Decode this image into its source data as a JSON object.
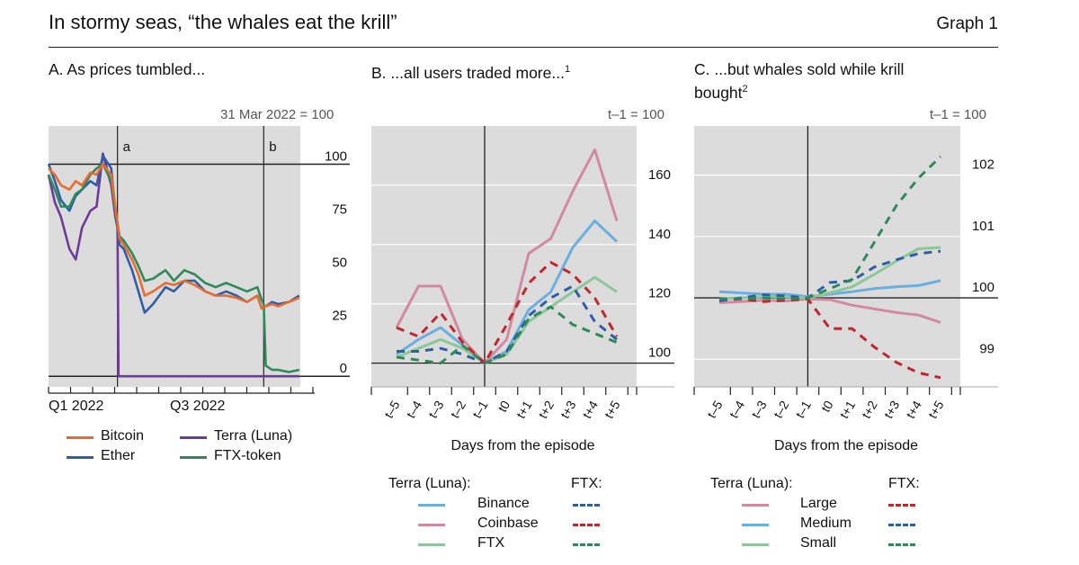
{
  "header": {
    "title": "In stormy seas, “the whales eat the krill”",
    "graph_label": "Graph 1"
  },
  "colors": {
    "bitcoin": "#ea6b2d",
    "ether": "#2f5ea8",
    "terra": "#6f3a9a",
    "ftx_token": "#2f8a5a",
    "binance": "#6aafe0",
    "coinbase": "#d38aa0",
    "ftx": "#8cc79a",
    "binance_dash": "#2f5ea8",
    "coinbase_dash": "#c0272d",
    "ftx_dash": "#2f8a5a",
    "large": "#d38aa0",
    "medium": "#6aafe0",
    "small": "#8cc79a",
    "large_dash": "#c0272d",
    "medium_dash": "#2f5ea8",
    "small_dash": "#2f8a5a",
    "plot_bg": "#dcdcdc"
  },
  "panelA": {
    "title": "A. As prices tumbled...",
    "note": "31 Mar 2022 = 100",
    "marker_a": "a",
    "marker_b": "b",
    "x_labels": [
      "Q1 2022",
      "Q3 2022"
    ],
    "legend": [
      "Bitcoin",
      "Terra (Luna)",
      "Ether",
      "FTX-token"
    ]
  },
  "panelB": {
    "title": "B. ...all users traded more...",
    "title_sup": "1",
    "note": "t–1 = 100",
    "xlabel": "Days from the episode",
    "legend_terra": "Terra (Luna):",
    "legend_ftx": "FTX:",
    "legend_items": [
      "Binance",
      "Coinbase",
      "FTX"
    ]
  },
  "panelC": {
    "title_line1": "C. ...but whales sold while krill",
    "title_line2": "bought",
    "title_sup": "2",
    "note": "t–1 = 100",
    "xlabel": "Days from the episode",
    "legend_terra": "Terra (Luna):",
    "legend_ftx": "FTX:",
    "legend_items": [
      "Large",
      "Medium",
      "Small"
    ]
  },
  "chart_data": [
    {
      "type": "line",
      "panel": "A",
      "title": "A. As prices tumbled...",
      "ylabel": "31 Mar 2022 = 100",
      "x_tick_labels": [
        "Q1 2022",
        "Q3 2022"
      ],
      "y_ticks": [
        0,
        25,
        50,
        75,
        100
      ],
      "ylim": [
        -5,
        118
      ],
      "x_unit": "months from 1 Jan 2022",
      "xlim": [
        0,
        13
      ],
      "vertical_markers": [
        {
          "label": "a",
          "x": 3.3
        },
        {
          "label": "b",
          "x": 10.3
        }
      ],
      "reference_lines": [
        0,
        100
      ],
      "series": [
        {
          "name": "Bitcoin",
          "x": [
            0,
            0.3,
            0.6,
            1,
            1.3,
            1.6,
            2,
            2.3,
            2.6,
            3,
            3.2,
            3.4,
            3.6,
            4,
            4.3,
            4.6,
            5,
            5.3,
            5.6,
            6,
            6.5,
            7,
            7.5,
            8,
            8.5,
            9,
            9.5,
            10,
            10.2,
            10.4,
            10.7,
            11,
            11.5,
            12
          ],
          "y": [
            98,
            95,
            90,
            88,
            92,
            90,
            96,
            95,
            100,
            95,
            80,
            65,
            62,
            55,
            48,
            38,
            40,
            42,
            44,
            43,
            45,
            43,
            40,
            38,
            38,
            37,
            35,
            38,
            32,
            33,
            34,
            33,
            35,
            37
          ]
        },
        {
          "name": "Ether",
          "x": [
            0,
            0.3,
            0.6,
            1,
            1.3,
            1.6,
            2,
            2.3,
            2.6,
            3,
            3.2,
            3.4,
            3.6,
            4,
            4.3,
            4.6,
            5,
            5.3,
            5.6,
            6,
            6.5,
            7,
            7.5,
            8,
            8.5,
            9,
            9.5,
            10,
            10.2,
            10.4,
            10.7,
            11,
            11.5,
            12
          ],
          "y": [
            100,
            92,
            83,
            78,
            85,
            88,
            92,
            90,
            104,
            98,
            78,
            62,
            60,
            50,
            40,
            30,
            34,
            38,
            42,
            40,
            45,
            45,
            40,
            38,
            40,
            38,
            35,
            38,
            32,
            33,
            35,
            34,
            35,
            38
          ]
        },
        {
          "name": "Terra (Luna)",
          "x": [
            0,
            0.3,
            0.6,
            1,
            1.3,
            1.6,
            2,
            2.3,
            2.6,
            3,
            3.2,
            3.3,
            3.35,
            4,
            6,
            8,
            10,
            12
          ],
          "y": [
            95,
            82,
            75,
            60,
            55,
            70,
            78,
            80,
            105,
            90,
            75,
            70,
            0,
            0,
            0,
            0,
            0,
            0
          ]
        },
        {
          "name": "FTX-token",
          "x": [
            0,
            0.3,
            0.6,
            1,
            1.3,
            1.6,
            2,
            2.3,
            2.6,
            3,
            3.2,
            3.4,
            3.6,
            4,
            4.3,
            4.6,
            5,
            5.3,
            5.6,
            6,
            6.5,
            7,
            7.5,
            8,
            8.5,
            9,
            9.5,
            10,
            10.2,
            10.3,
            10.4,
            10.7,
            11,
            11.5,
            12
          ],
          "y": [
            95,
            88,
            80,
            80,
            86,
            88,
            95,
            98,
            100,
            92,
            78,
            66,
            64,
            58,
            52,
            45,
            46,
            48,
            50,
            45,
            50,
            48,
            44,
            42,
            44,
            42,
            40,
            42,
            36,
            34,
            5,
            3,
            3,
            2,
            3
          ]
        }
      ]
    },
    {
      "type": "line",
      "panel": "B",
      "title": "B. ...all users traded more...",
      "ylabel": "t–1 = 100",
      "xlabel": "Days from the episode",
      "categories": [
        "t–5",
        "t–4",
        "t–3",
        "t–2",
        "t–1",
        "t0",
        "t+1",
        "t+2",
        "t+3",
        "t+4",
        "t+5"
      ],
      "y_ticks": [
        100,
        120,
        140,
        160
      ],
      "ylim": [
        92,
        180
      ],
      "series": [
        {
          "name": "Binance",
          "group": "Terra (Luna)",
          "values": [
            103,
            108,
            112,
            106,
            100,
            104,
            118,
            124,
            139,
            148,
            141
          ]
        },
        {
          "name": "Coinbase",
          "group": "Terra (Luna)",
          "values": [
            112,
            126,
            126,
            108,
            100,
            108,
            137,
            142,
            158,
            172,
            148
          ]
        },
        {
          "name": "FTX",
          "group": "Terra (Luna)",
          "values": [
            102,
            105,
            108,
            105,
            100,
            103,
            114,
            119,
            124,
            129,
            124
          ]
        },
        {
          "name": "Binance",
          "group": "FTX",
          "values": [
            104,
            104,
            105,
            103,
            100,
            104,
            116,
            122,
            126,
            114,
            108
          ]
        },
        {
          "name": "Coinbase",
          "group": "FTX",
          "values": [
            112,
            109,
            117,
            107,
            100,
            113,
            127,
            134,
            130,
            122,
            109
          ]
        },
        {
          "name": "FTX",
          "group": "FTX",
          "values": [
            102,
            101,
            100,
            106,
            100,
            103,
            115,
            119,
            113,
            110,
            107
          ]
        }
      ]
    },
    {
      "type": "line",
      "panel": "C",
      "title": "C. ...but whales sold while krill bought",
      "ylabel": "t–1 = 100",
      "xlabel": "Days from the episode",
      "categories": [
        "t–5",
        "t–4",
        "t–3",
        "t–2",
        "t–1",
        "t0",
        "t+1",
        "t+2",
        "t+3",
        "t+4",
        "t+5"
      ],
      "y_ticks": [
        99,
        100,
        101,
        102
      ],
      "ylim": [
        98.55,
        102.8
      ],
      "series": [
        {
          "name": "Large",
          "group": "Terra (Luna)",
          "values": [
            99.92,
            99.94,
            99.96,
            99.95,
            99.98,
            99.97,
            99.88,
            99.82,
            99.76,
            99.72,
            99.6
          ]
        },
        {
          "name": "Medium",
          "group": "Terra (Luna)",
          "values": [
            100.1,
            100.08,
            100.06,
            100.06,
            100.02,
            100.06,
            100.1,
            100.15,
            100.18,
            100.2,
            100.28
          ]
        },
        {
          "name": "Small",
          "group": "Terra (Luna)",
          "values": [
            99.98,
            100,
            100.02,
            100.02,
            100.0,
            100.08,
            100.18,
            100.38,
            100.6,
            100.8,
            100.82
          ]
        },
        {
          "name": "Large",
          "group": "FTX",
          "values": [
            99.96,
            99.98,
            99.94,
            99.96,
            99.98,
            99.5,
            99.5,
            99.2,
            98.95,
            98.78,
            98.7
          ]
        },
        {
          "name": "Medium",
          "group": "FTX",
          "values": [
            99.95,
            100.0,
            100.05,
            100.03,
            100.0,
            100.25,
            100.28,
            100.5,
            100.62,
            100.72,
            100.76
          ]
        },
        {
          "name": "Small",
          "group": "FTX",
          "values": [
            99.98,
            99.98,
            100.0,
            99.98,
            100.0,
            100.15,
            100.3,
            100.9,
            101.5,
            101.95,
            102.3
          ]
        }
      ]
    }
  ]
}
